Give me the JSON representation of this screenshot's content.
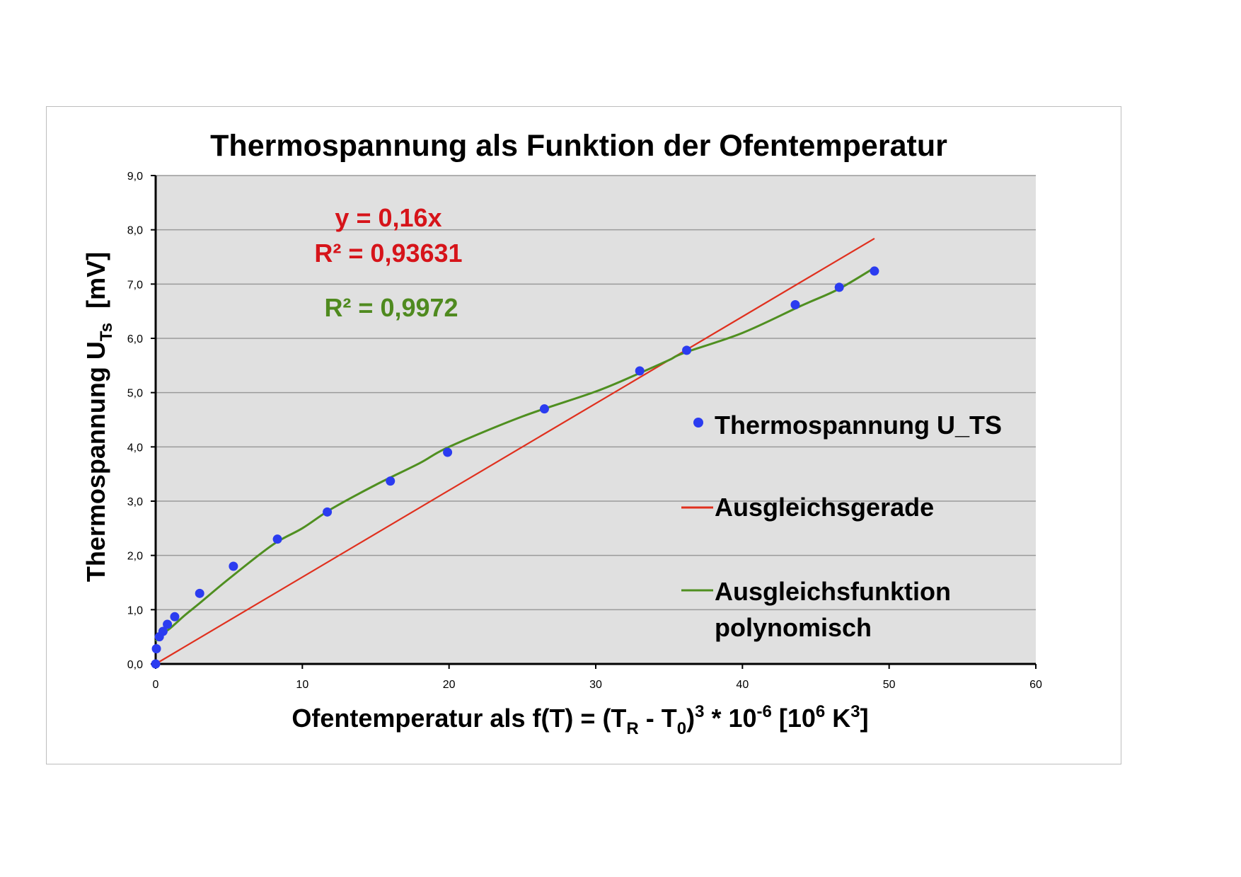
{
  "chart_data": {
    "type": "scatter",
    "title": "Thermospannung als Funktion der Ofentemperatur",
    "xlabel": {
      "main": "Ofentemperatur als f(T) = (T",
      "sub1": "R",
      "mid": " - T",
      "sub2": "0",
      "sup1": "3",
      "mid2": " * 10",
      "sup2": "-6",
      "mid3": " [10",
      "sup3": "6",
      "mid4": " K",
      "sup4": "3",
      "end": "]"
    },
    "ylabel": {
      "main": "Thermospannung U",
      "sub": "Ts",
      "unit": "  [mV]"
    },
    "xlim": [
      0,
      60
    ],
    "ylim": [
      0,
      9
    ],
    "x_ticks": [
      "0",
      "10",
      "20",
      "30",
      "40",
      "50",
      "60"
    ],
    "y_ticks": [
      "0,0",
      "1,0",
      "2,0",
      "3,0",
      "4,0",
      "5,0",
      "6,0",
      "7,0",
      "8,0",
      "9,0"
    ],
    "grid": true,
    "legend_position": "right",
    "series": [
      {
        "name": "Thermospannung U_TS",
        "kind": "scatter",
        "color": "#2b3cf0",
        "points": [
          [
            0.0,
            0.0
          ],
          [
            0.05,
            0.28
          ],
          [
            0.25,
            0.5
          ],
          [
            0.5,
            0.6
          ],
          [
            0.8,
            0.73
          ],
          [
            1.3,
            0.87
          ],
          [
            3.0,
            1.3
          ],
          [
            5.3,
            1.8
          ],
          [
            8.3,
            2.3
          ],
          [
            11.7,
            2.8
          ],
          [
            16.0,
            3.37
          ],
          [
            19.9,
            3.9
          ],
          [
            26.5,
            4.7
          ],
          [
            33.0,
            5.4
          ],
          [
            36.2,
            5.78
          ],
          [
            43.6,
            6.62
          ],
          [
            46.6,
            6.94
          ],
          [
            49.0,
            7.24
          ]
        ]
      },
      {
        "name": "Ausgleichsgerade",
        "kind": "line",
        "color": "#e0301e",
        "slope": 0.16,
        "x_range": [
          0,
          49
        ]
      },
      {
        "name": "Ausgleichsfunktion polynomisch",
        "kind": "curve",
        "color": "#4f8f20",
        "points": [
          [
            0.0,
            0.42
          ],
          [
            0.5,
            0.56
          ],
          [
            1,
            0.66
          ],
          [
            2,
            0.9
          ],
          [
            3,
            1.12
          ],
          [
            5,
            1.57
          ],
          [
            8,
            2.2
          ],
          [
            10,
            2.5
          ],
          [
            12,
            2.86
          ],
          [
            15,
            3.3
          ],
          [
            18,
            3.7
          ],
          [
            20,
            4.0
          ],
          [
            25,
            4.56
          ],
          [
            30,
            5.02
          ],
          [
            33,
            5.36
          ],
          [
            35,
            5.6
          ],
          [
            36,
            5.73
          ],
          [
            40,
            6.1
          ],
          [
            44,
            6.6
          ],
          [
            46.5,
            6.9
          ],
          [
            49,
            7.3
          ]
        ]
      }
    ],
    "annotations": {
      "red_equation": "y = 0,16x",
      "red_r2": "R² = 0,93631",
      "green_r2": "R² = 0,9972"
    },
    "legend_entries": [
      "Thermospannung U_TS",
      "Ausgleichsgerade",
      "Ausgleichsfunktion",
      "polynomisch"
    ]
  }
}
